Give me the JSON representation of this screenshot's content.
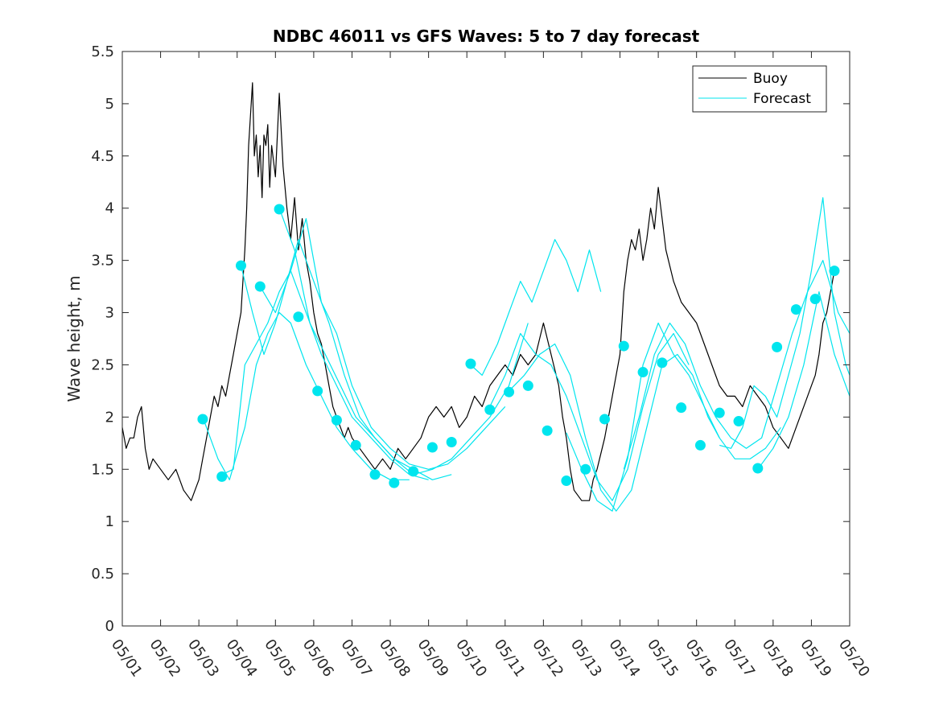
{
  "chart_data": {
    "type": "line",
    "title": "NDBC 46011 vs GFS Waves: 5 to 7 day forecast",
    "xlabel": "",
    "ylabel": "Wave height, m",
    "xlim": [
      0,
      19
    ],
    "ylim": [
      0,
      5.5
    ],
    "x_tick_labels": [
      "05/01",
      "05/02",
      "05/03",
      "05/04",
      "05/05",
      "05/06",
      "05/07",
      "05/08",
      "05/09",
      "05/10",
      "05/11",
      "05/12",
      "05/13",
      "05/14",
      "05/15",
      "05/16",
      "05/17",
      "05/18",
      "05/19",
      "05/20"
    ],
    "y_tick_labels": [
      "0",
      "0.5",
      "1",
      "1.5",
      "2",
      "2.5",
      "3",
      "3.5",
      "4",
      "4.5",
      "5",
      "5.5"
    ],
    "legend": {
      "placement": "top-right",
      "entries": [
        "Buoy",
        "Forecast"
      ]
    },
    "colors": {
      "buoy": "#000000",
      "forecast": "#00e5ee",
      "marker": "#00e5ee",
      "axis": "#262626"
    },
    "grid": false,
    "buoy": {
      "name": "Buoy",
      "x": [
        0,
        0.1,
        0.2,
        0.3,
        0.4,
        0.5,
        0.6,
        0.7,
        0.8,
        1.0,
        1.2,
        1.4,
        1.6,
        1.8,
        1.9,
        2.0,
        2.1,
        2.2,
        2.3,
        2.4,
        2.5,
        2.6,
        2.7,
        2.8,
        2.9,
        3.0,
        3.1,
        3.2,
        3.25,
        3.3,
        3.35,
        3.4,
        3.45,
        3.5,
        3.55,
        3.6,
        3.65,
        3.7,
        3.75,
        3.8,
        3.85,
        3.9,
        4.0,
        4.1,
        4.2,
        4.3,
        4.4,
        4.5,
        4.6,
        4.7,
        4.8,
        4.9,
        5.0,
        5.1,
        5.2,
        5.3,
        5.4,
        5.5,
        5.6,
        5.7,
        5.8,
        5.9,
        6.0,
        6.2,
        6.4,
        6.6,
        6.8,
        7.0,
        7.2,
        7.4,
        7.6,
        7.8,
        8.0,
        8.2,
        8.4,
        8.6,
        8.8,
        9.0,
        9.2,
        9.4,
        9.6,
        9.8,
        10.0,
        10.2,
        10.4,
        10.6,
        10.8,
        11.0,
        11.2,
        11.4,
        11.5,
        11.6,
        11.7,
        11.8,
        12.0,
        12.2,
        12.3,
        12.4,
        12.6,
        12.8,
        13.0,
        13.1,
        13.2,
        13.3,
        13.4,
        13.5,
        13.6,
        13.7,
        13.8,
        13.9,
        14.0,
        14.1,
        14.2,
        14.4,
        14.6,
        14.8,
        15.0,
        15.2,
        15.4,
        15.6,
        15.8,
        16.0,
        16.2,
        16.4,
        16.6,
        16.8,
        17.0,
        17.2,
        17.4,
        17.6,
        17.8,
        18.0,
        18.1,
        18.2,
        18.3,
        18.4,
        18.5,
        18.6
      ],
      "values": [
        1.9,
        1.7,
        1.8,
        1.8,
        2.0,
        2.1,
        1.7,
        1.5,
        1.6,
        1.5,
        1.4,
        1.5,
        1.3,
        1.2,
        1.3,
        1.4,
        1.6,
        1.8,
        2.0,
        2.2,
        2.1,
        2.3,
        2.2,
        2.4,
        2.6,
        2.8,
        3.0,
        3.6,
        4.0,
        4.6,
        4.9,
        5.2,
        4.5,
        4.7,
        4.3,
        4.6,
        4.1,
        4.7,
        4.6,
        4.8,
        4.2,
        4.6,
        4.3,
        5.1,
        4.4,
        4.0,
        3.7,
        4.1,
        3.6,
        3.9,
        3.5,
        3.3,
        3.0,
        2.8,
        2.7,
        2.5,
        2.3,
        2.1,
        2.0,
        1.9,
        1.8,
        1.9,
        1.8,
        1.7,
        1.6,
        1.5,
        1.6,
        1.5,
        1.7,
        1.6,
        1.7,
        1.8,
        2.0,
        2.1,
        2.0,
        2.1,
        1.9,
        2.0,
        2.2,
        2.1,
        2.3,
        2.4,
        2.5,
        2.4,
        2.6,
        2.5,
        2.6,
        2.9,
        2.6,
        2.3,
        2.0,
        1.8,
        1.5,
        1.3,
        1.2,
        1.2,
        1.4,
        1.5,
        1.8,
        2.2,
        2.6,
        3.2,
        3.5,
        3.7,
        3.6,
        3.8,
        3.5,
        3.7,
        4.0,
        3.8,
        4.2,
        3.9,
        3.6,
        3.3,
        3.1,
        3.0,
        2.9,
        2.7,
        2.5,
        2.3,
        2.2,
        2.2,
        2.1,
        2.3,
        2.2,
        2.1,
        1.9,
        1.8,
        1.7,
        1.9,
        2.1,
        2.3,
        2.4,
        2.6,
        2.9,
        3.0,
        3.2,
        3.4
      ]
    },
    "forecast": {
      "name": "Forecast",
      "series": [
        {
          "x": [
            2.1,
            2.5,
            2.8,
            3.2,
            3.5,
            3.8,
            4.1,
            4.4,
            4.8,
            5.2,
            5.6,
            6.0,
            6.5,
            7.0,
            7.5
          ],
          "values": [
            2.0,
            1.6,
            1.4,
            1.9,
            2.5,
            2.8,
            3.0,
            2.9,
            2.5,
            2.2,
            1.9,
            1.7,
            1.5,
            1.4,
            1.4
          ]
        },
        {
          "x": [
            2.6,
            2.9,
            3.2,
            3.5,
            3.8,
            4.1,
            4.4,
            4.8,
            5.2,
            5.6,
            6.0,
            6.5,
            7.0,
            7.5,
            8.0
          ],
          "values": [
            1.45,
            1.5,
            2.5,
            2.7,
            2.9,
            3.2,
            3.4,
            3.0,
            2.6,
            2.3,
            2.0,
            1.8,
            1.6,
            1.45,
            1.4
          ]
        },
        {
          "x": [
            3.1,
            3.4,
            3.7,
            4.0,
            4.3,
            4.6,
            5.0,
            5.4,
            5.8,
            6.2,
            6.6,
            7.1,
            7.6,
            8.1,
            8.6
          ],
          "values": [
            3.45,
            3.0,
            2.6,
            2.9,
            3.3,
            3.7,
            3.3,
            2.9,
            2.4,
            2.0,
            1.8,
            1.6,
            1.5,
            1.4,
            1.45
          ]
        },
        {
          "x": [
            3.6,
            4.0,
            4.4,
            4.8,
            5.2,
            5.6,
            6.0,
            6.5,
            7.0,
            7.5,
            8.0,
            8.5,
            9.0,
            9.5,
            10.0
          ],
          "values": [
            3.25,
            3.0,
            3.4,
            3.9,
            3.1,
            2.8,
            2.3,
            1.9,
            1.7,
            1.55,
            1.5,
            1.55,
            1.7,
            1.9,
            2.1
          ]
        },
        {
          "x": [
            4.1,
            4.5,
            4.9,
            5.3,
            5.7,
            6.1,
            6.6,
            7.1,
            7.6,
            8.1,
            8.6,
            9.1,
            9.6,
            10.1,
            10.6
          ],
          "values": [
            4.0,
            3.6,
            2.9,
            2.6,
            2.3,
            2.0,
            1.8,
            1.6,
            1.45,
            1.5,
            1.6,
            1.8,
            2.0,
            2.3,
            2.9
          ]
        },
        {
          "x": [
            9.1,
            9.4,
            9.8,
            10.1,
            10.4,
            10.7,
            11.0,
            11.3,
            11.6,
            11.9,
            12.2,
            12.5
          ],
          "values": [
            2.5,
            2.4,
            2.7,
            3.0,
            3.3,
            3.1,
            3.4,
            3.7,
            3.5,
            3.2,
            3.6,
            3.2
          ]
        },
        {
          "x": [
            9.6,
            10.0,
            10.4,
            10.8,
            11.2,
            11.6,
            12.0,
            12.4,
            12.8,
            13.2,
            13.6,
            14.0,
            14.4,
            14.8
          ],
          "values": [
            2.1,
            2.4,
            2.8,
            2.6,
            2.5,
            2.2,
            1.8,
            1.4,
            1.2,
            1.5,
            2.1,
            2.6,
            2.8,
            2.5
          ]
        },
        {
          "x": [
            10.1,
            10.5,
            10.9,
            11.3,
            11.7,
            12.1,
            12.5,
            12.9,
            13.3,
            13.7,
            14.1,
            14.5,
            14.9,
            15.3,
            15.6
          ],
          "values": [
            2.25,
            2.4,
            2.6,
            2.7,
            2.4,
            1.8,
            1.3,
            1.1,
            1.3,
            1.9,
            2.5,
            2.6,
            2.4,
            2.0,
            1.8
          ]
        },
        {
          "x": [
            11.6,
            12.0,
            12.4,
            12.8,
            13.2,
            13.6,
            14.0,
            14.4,
            14.8,
            15.2,
            15.6,
            16.0,
            16.4,
            16.8,
            17.2
          ],
          "values": [
            1.85,
            1.5,
            1.2,
            1.1,
            1.6,
            2.5,
            2.9,
            2.6,
            2.4,
            2.1,
            1.8,
            1.6,
            1.6,
            1.7,
            1.9
          ]
        },
        {
          "x": [
            13.1,
            13.5,
            13.9,
            14.3,
            14.7,
            15.1,
            15.5,
            15.9,
            16.3,
            16.7,
            17.1,
            17.5,
            17.9,
            18.3,
            18.7,
            19.0
          ],
          "values": [
            1.5,
            2.0,
            2.6,
            2.9,
            2.7,
            2.3,
            2.0,
            1.8,
            1.7,
            1.8,
            2.3,
            2.8,
            3.2,
            3.5,
            3.0,
            2.8
          ]
        },
        {
          "x": [
            15.6,
            15.9,
            16.2,
            16.5,
            16.8,
            17.1,
            17.4,
            17.7,
            18.0,
            18.3,
            18.6,
            18.9,
            19.0
          ],
          "values": [
            1.73,
            1.7,
            1.9,
            2.3,
            2.2,
            2.0,
            2.4,
            2.8,
            3.4,
            4.1,
            3.0,
            2.5,
            2.4
          ]
        },
        {
          "x": [
            16.6,
            17.0,
            17.4,
            17.8,
            18.2,
            18.6,
            19.0
          ],
          "values": [
            1.5,
            1.7,
            2.0,
            2.5,
            3.2,
            2.6,
            2.2
          ]
        }
      ],
      "markers": {
        "x": [
          2.1,
          2.6,
          3.1,
          3.6,
          4.1,
          4.6,
          5.1,
          5.6,
          6.1,
          6.6,
          7.1,
          7.6,
          8.1,
          8.6,
          9.1,
          9.6,
          10.1,
          10.6,
          11.1,
          11.6,
          12.1,
          12.6,
          13.1,
          13.6,
          14.1,
          14.6,
          15.1,
          15.6,
          16.1,
          16.6,
          17.1,
          17.6,
          18.1,
          18.6
        ],
        "values": [
          1.98,
          1.43,
          3.45,
          3.25,
          3.99,
          2.96,
          2.25,
          1.97,
          1.73,
          1.45,
          1.37,
          1.48,
          1.71,
          1.76,
          2.51,
          2.07,
          2.24,
          2.3,
          1.87,
          1.39,
          1.5,
          1.98,
          2.68,
          2.43,
          2.52,
          2.09,
          1.73,
          2.04,
          1.96,
          1.51,
          2.67,
          3.03,
          3.13,
          3.4
        ]
      }
    }
  }
}
